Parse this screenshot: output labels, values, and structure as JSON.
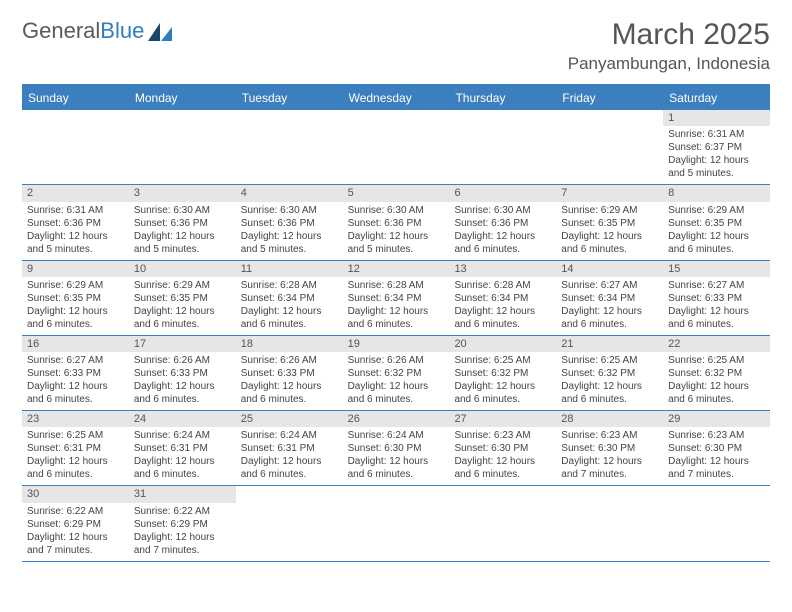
{
  "logo": {
    "text1": "General",
    "text2": "Blue"
  },
  "title": "March 2025",
  "location": "Panyambungan, Indonesia",
  "colors": {
    "header_bg": "#3b7fbf",
    "header_text": "#ffffff",
    "daynum_bg": "#e6e6e6",
    "border": "#3b7fbf",
    "body_text": "#444444"
  },
  "day_names": [
    "Sunday",
    "Monday",
    "Tuesday",
    "Wednesday",
    "Thursday",
    "Friday",
    "Saturday"
  ],
  "weeks": [
    [
      {
        "blank": true
      },
      {
        "blank": true
      },
      {
        "blank": true
      },
      {
        "blank": true
      },
      {
        "blank": true
      },
      {
        "blank": true
      },
      {
        "n": "1",
        "sr": "Sunrise: 6:31 AM",
        "ss": "Sunset: 6:37 PM",
        "d1": "Daylight: 12 hours",
        "d2": "and 5 minutes."
      }
    ],
    [
      {
        "n": "2",
        "sr": "Sunrise: 6:31 AM",
        "ss": "Sunset: 6:36 PM",
        "d1": "Daylight: 12 hours",
        "d2": "and 5 minutes."
      },
      {
        "n": "3",
        "sr": "Sunrise: 6:30 AM",
        "ss": "Sunset: 6:36 PM",
        "d1": "Daylight: 12 hours",
        "d2": "and 5 minutes."
      },
      {
        "n": "4",
        "sr": "Sunrise: 6:30 AM",
        "ss": "Sunset: 6:36 PM",
        "d1": "Daylight: 12 hours",
        "d2": "and 5 minutes."
      },
      {
        "n": "5",
        "sr": "Sunrise: 6:30 AM",
        "ss": "Sunset: 6:36 PM",
        "d1": "Daylight: 12 hours",
        "d2": "and 5 minutes."
      },
      {
        "n": "6",
        "sr": "Sunrise: 6:30 AM",
        "ss": "Sunset: 6:36 PM",
        "d1": "Daylight: 12 hours",
        "d2": "and 6 minutes."
      },
      {
        "n": "7",
        "sr": "Sunrise: 6:29 AM",
        "ss": "Sunset: 6:35 PM",
        "d1": "Daylight: 12 hours",
        "d2": "and 6 minutes."
      },
      {
        "n": "8",
        "sr": "Sunrise: 6:29 AM",
        "ss": "Sunset: 6:35 PM",
        "d1": "Daylight: 12 hours",
        "d2": "and 6 minutes."
      }
    ],
    [
      {
        "n": "9",
        "sr": "Sunrise: 6:29 AM",
        "ss": "Sunset: 6:35 PM",
        "d1": "Daylight: 12 hours",
        "d2": "and 6 minutes."
      },
      {
        "n": "10",
        "sr": "Sunrise: 6:29 AM",
        "ss": "Sunset: 6:35 PM",
        "d1": "Daylight: 12 hours",
        "d2": "and 6 minutes."
      },
      {
        "n": "11",
        "sr": "Sunrise: 6:28 AM",
        "ss": "Sunset: 6:34 PM",
        "d1": "Daylight: 12 hours",
        "d2": "and 6 minutes."
      },
      {
        "n": "12",
        "sr": "Sunrise: 6:28 AM",
        "ss": "Sunset: 6:34 PM",
        "d1": "Daylight: 12 hours",
        "d2": "and 6 minutes."
      },
      {
        "n": "13",
        "sr": "Sunrise: 6:28 AM",
        "ss": "Sunset: 6:34 PM",
        "d1": "Daylight: 12 hours",
        "d2": "and 6 minutes."
      },
      {
        "n": "14",
        "sr": "Sunrise: 6:27 AM",
        "ss": "Sunset: 6:34 PM",
        "d1": "Daylight: 12 hours",
        "d2": "and 6 minutes."
      },
      {
        "n": "15",
        "sr": "Sunrise: 6:27 AM",
        "ss": "Sunset: 6:33 PM",
        "d1": "Daylight: 12 hours",
        "d2": "and 6 minutes."
      }
    ],
    [
      {
        "n": "16",
        "sr": "Sunrise: 6:27 AM",
        "ss": "Sunset: 6:33 PM",
        "d1": "Daylight: 12 hours",
        "d2": "and 6 minutes."
      },
      {
        "n": "17",
        "sr": "Sunrise: 6:26 AM",
        "ss": "Sunset: 6:33 PM",
        "d1": "Daylight: 12 hours",
        "d2": "and 6 minutes."
      },
      {
        "n": "18",
        "sr": "Sunrise: 6:26 AM",
        "ss": "Sunset: 6:33 PM",
        "d1": "Daylight: 12 hours",
        "d2": "and 6 minutes."
      },
      {
        "n": "19",
        "sr": "Sunrise: 6:26 AM",
        "ss": "Sunset: 6:32 PM",
        "d1": "Daylight: 12 hours",
        "d2": "and 6 minutes."
      },
      {
        "n": "20",
        "sr": "Sunrise: 6:25 AM",
        "ss": "Sunset: 6:32 PM",
        "d1": "Daylight: 12 hours",
        "d2": "and 6 minutes."
      },
      {
        "n": "21",
        "sr": "Sunrise: 6:25 AM",
        "ss": "Sunset: 6:32 PM",
        "d1": "Daylight: 12 hours",
        "d2": "and 6 minutes."
      },
      {
        "n": "22",
        "sr": "Sunrise: 6:25 AM",
        "ss": "Sunset: 6:32 PM",
        "d1": "Daylight: 12 hours",
        "d2": "and 6 minutes."
      }
    ],
    [
      {
        "n": "23",
        "sr": "Sunrise: 6:25 AM",
        "ss": "Sunset: 6:31 PM",
        "d1": "Daylight: 12 hours",
        "d2": "and 6 minutes."
      },
      {
        "n": "24",
        "sr": "Sunrise: 6:24 AM",
        "ss": "Sunset: 6:31 PM",
        "d1": "Daylight: 12 hours",
        "d2": "and 6 minutes."
      },
      {
        "n": "25",
        "sr": "Sunrise: 6:24 AM",
        "ss": "Sunset: 6:31 PM",
        "d1": "Daylight: 12 hours",
        "d2": "and 6 minutes."
      },
      {
        "n": "26",
        "sr": "Sunrise: 6:24 AM",
        "ss": "Sunset: 6:30 PM",
        "d1": "Daylight: 12 hours",
        "d2": "and 6 minutes."
      },
      {
        "n": "27",
        "sr": "Sunrise: 6:23 AM",
        "ss": "Sunset: 6:30 PM",
        "d1": "Daylight: 12 hours",
        "d2": "and 6 minutes."
      },
      {
        "n": "28",
        "sr": "Sunrise: 6:23 AM",
        "ss": "Sunset: 6:30 PM",
        "d1": "Daylight: 12 hours",
        "d2": "and 7 minutes."
      },
      {
        "n": "29",
        "sr": "Sunrise: 6:23 AM",
        "ss": "Sunset: 6:30 PM",
        "d1": "Daylight: 12 hours",
        "d2": "and 7 minutes."
      }
    ],
    [
      {
        "n": "30",
        "sr": "Sunrise: 6:22 AM",
        "ss": "Sunset: 6:29 PM",
        "d1": "Daylight: 12 hours",
        "d2": "and 7 minutes."
      },
      {
        "n": "31",
        "sr": "Sunrise: 6:22 AM",
        "ss": "Sunset: 6:29 PM",
        "d1": "Daylight: 12 hours",
        "d2": "and 7 minutes."
      },
      {
        "blank": true
      },
      {
        "blank": true
      },
      {
        "blank": true
      },
      {
        "blank": true
      },
      {
        "blank": true
      }
    ]
  ]
}
